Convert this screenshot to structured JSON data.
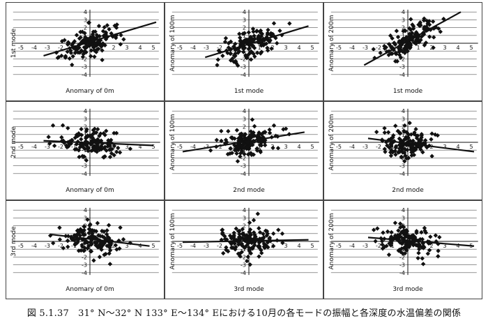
{
  "figure": {
    "caption": "図 5.1.37　31° N～32° N 133° E～134° Eにおける10月の各モードの振幅と各深度の水温偏差の関係"
  },
  "colors": {
    "ink": "#111111",
    "panel_border": "#444444"
  },
  "chart_data": [
    {
      "type": "scatter",
      "panel": "row1-col1",
      "xlabel": "Anomary of 0m",
      "ylabel": "1st mode",
      "xlim": [
        -5,
        5
      ],
      "ylim": [
        -4,
        4
      ],
      "x_ticks": [
        "-5",
        "-4",
        "-3",
        "-2",
        "-1",
        "",
        "1",
        "2",
        "3",
        "4",
        "5"
      ],
      "y_ticks": [
        "4",
        "3",
        "2",
        "1",
        "",
        "-1",
        "-2",
        "-3",
        "-4"
      ],
      "trend": {
        "x": [
          -3.5,
          5
        ],
        "y": [
          -1.6,
          2.7
        ]
      }
    },
    {
      "type": "scatter",
      "panel": "row1-col2",
      "xlabel": "1st mode",
      "ylabel": "Anomary of 100m",
      "xlim": [
        -5,
        5
      ],
      "ylim": [
        -4,
        4
      ],
      "x_ticks": [
        "-5",
        "-4",
        "-3",
        "-2",
        "-1",
        "",
        "1",
        "2",
        "3",
        "4",
        "5"
      ],
      "y_ticks": [
        "4",
        "3",
        "2",
        "1",
        "",
        "-1",
        "-2",
        "-3",
        "-4"
      ],
      "trend": {
        "x": [
          -3.3,
          4.5
        ],
        "y": [
          -1.8,
          2.2
        ]
      }
    },
    {
      "type": "scatter",
      "panel": "row1-col3",
      "xlabel": "1st mode",
      "ylabel": "Anomary of 200m",
      "xlim": [
        -5,
        5
      ],
      "ylim": [
        -4,
        4
      ],
      "x_ticks": [
        "-5",
        "-4",
        "-3",
        "-2",
        "-1",
        "",
        "1",
        "2",
        "3",
        "4",
        "5"
      ],
      "y_ticks": [
        "4",
        "3",
        "2",
        "1",
        "",
        "-1",
        "-2",
        "-3",
        "-4"
      ],
      "trend": {
        "x": [
          -3.3,
          4.0
        ],
        "y": [
          -2.8,
          4.0
        ]
      }
    },
    {
      "type": "scatter",
      "panel": "row2-col1",
      "xlabel": "Anomary of 0m",
      "ylabel": "2nd mode",
      "xlim": [
        -5,
        5
      ],
      "ylim": [
        -4,
        4
      ],
      "x_ticks": [
        "-5",
        "-4",
        "-3",
        "-2",
        "-1",
        "",
        "1",
        "2",
        "3",
        "4",
        "5"
      ],
      "y_ticks": [
        "4",
        "3",
        "2",
        "1",
        "",
        "-1",
        "-2",
        "-3",
        "-4"
      ],
      "trend": {
        "x": [
          -3.5,
          4.8
        ],
        "y": [
          0.2,
          -0.4
        ]
      }
    },
    {
      "type": "scatter",
      "panel": "row2-col2",
      "xlabel": "2nd mode",
      "ylabel": "Anomary of 100m",
      "xlim": [
        -5,
        5
      ],
      "ylim": [
        -4,
        4
      ],
      "x_ticks": [
        "-5",
        "-4",
        "-3",
        "-2",
        "-1",
        "",
        "1",
        "2",
        "3",
        "4",
        "5"
      ],
      "y_ticks": [
        "4",
        "3",
        "2",
        "1",
        "",
        "-1",
        "-2",
        "-3",
        "-4"
      ],
      "trend": {
        "x": [
          -5,
          4.2
        ],
        "y": [
          -1.2,
          1.3
        ]
      }
    },
    {
      "type": "scatter",
      "panel": "row2-col3",
      "xlabel": "2nd mode",
      "ylabel": "Anomary of 200m",
      "xlim": [
        -5,
        5
      ],
      "ylim": [
        -4,
        4
      ],
      "x_ticks": [
        "-5",
        "-4",
        "-3",
        "-2",
        "-1",
        "",
        "1",
        "2",
        "3",
        "4",
        "5"
      ],
      "y_ticks": [
        "4",
        "3",
        "2",
        "1",
        "",
        "-1",
        "-2",
        "-3",
        "-4"
      ],
      "trend": {
        "x": [
          -3.0,
          5
        ],
        "y": [
          0.5,
          -1.2
        ]
      }
    },
    {
      "type": "scatter",
      "panel": "row3-col1",
      "xlabel": "Anomary of 0m",
      "ylabel": "3rd mode",
      "xlim": [
        -5,
        5
      ],
      "ylim": [
        -4,
        4
      ],
      "x_ticks": [
        "-5",
        "-4",
        "-3",
        "-2",
        "-1",
        "",
        "1",
        "2",
        "3",
        "4",
        "5"
      ],
      "y_ticks": [
        "4",
        "3",
        "2",
        "1",
        "",
        "-1",
        "-2",
        "-3",
        "-4"
      ],
      "trend": {
        "x": [
          -3.0,
          4.5
        ],
        "y": [
          0.9,
          -0.6
        ]
      }
    },
    {
      "type": "scatter",
      "panel": "row3-col2",
      "xlabel": "3rd mode",
      "ylabel": "Anomary of 100m",
      "xlim": [
        -5,
        5
      ],
      "ylim": [
        -4,
        4
      ],
      "x_ticks": [
        "-5",
        "-4",
        "-3",
        "-2",
        "-1",
        "",
        "1",
        "2",
        "3",
        "4",
        "5"
      ],
      "y_ticks": [
        "4",
        "3",
        "2",
        "1",
        "",
        "-1",
        "-2",
        "-3",
        "-4"
      ],
      "trend": {
        "x": [
          -5,
          4.5
        ],
        "y": [
          -0.1,
          0.2
        ]
      }
    },
    {
      "type": "scatter",
      "panel": "row3-col3",
      "xlabel": "3rd mode",
      "ylabel": "Anomary of 200m",
      "xlim": [
        -5,
        5
      ],
      "ylim": [
        -4,
        4
      ],
      "x_ticks": [
        "-5",
        "-4",
        "-3",
        "-2",
        "-1",
        "",
        "1",
        "2",
        "3",
        "4",
        "5"
      ],
      "y_ticks": [
        "4",
        "3",
        "2",
        "1",
        "",
        "-1",
        "-2",
        "-3",
        "-4"
      ],
      "trend": {
        "x": [
          -3.0,
          5
        ],
        "y": [
          0.5,
          -0.6
        ]
      }
    }
  ]
}
